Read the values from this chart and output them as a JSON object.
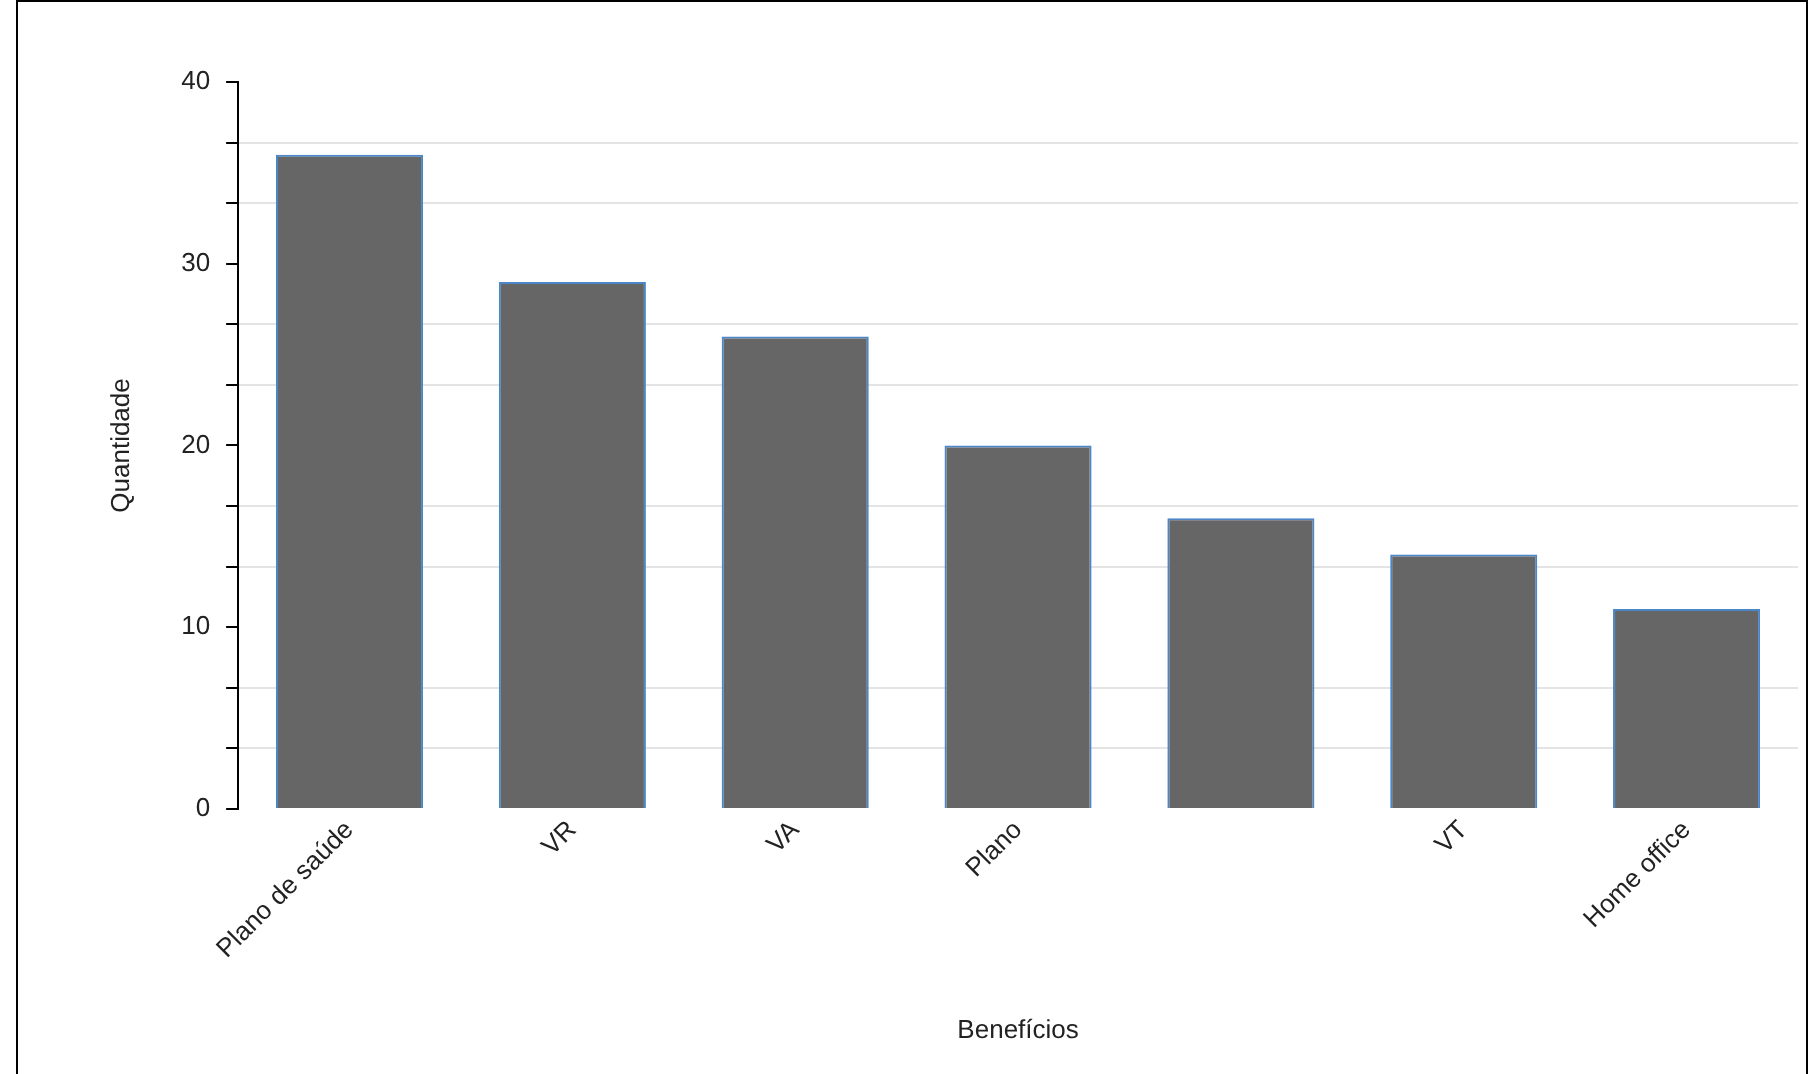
{
  "chart_data": {
    "type": "bar",
    "xlabel": "Benefícios",
    "ylabel": "Quantidade",
    "categories": [
      "Plano de saúde",
      "VR",
      "VA",
      "Plano",
      null,
      "VT",
      "Home office"
    ],
    "values": [
      36,
      29,
      26,
      20,
      16,
      14,
      11
    ],
    "color": "#666666",
    "ylim": [
      0,
      40
    ],
    "yticks": [
      0,
      {
        "value": 3.33,
        "label": null
      },
      {
        "value": 6.67,
        "label": null
      },
      10,
      {
        "value": 13.33,
        "label": null
      },
      {
        "value": 16.67,
        "label": null
      },
      20,
      {
        "value": 23.33,
        "label": null
      },
      {
        "value": 26.67,
        "label": null
      },
      30,
      {
        "value": 33.33,
        "label": null
      },
      {
        "value": 36.67,
        "label": null
      },
      40
    ],
    "grid": "y",
    "legend": false
  }
}
